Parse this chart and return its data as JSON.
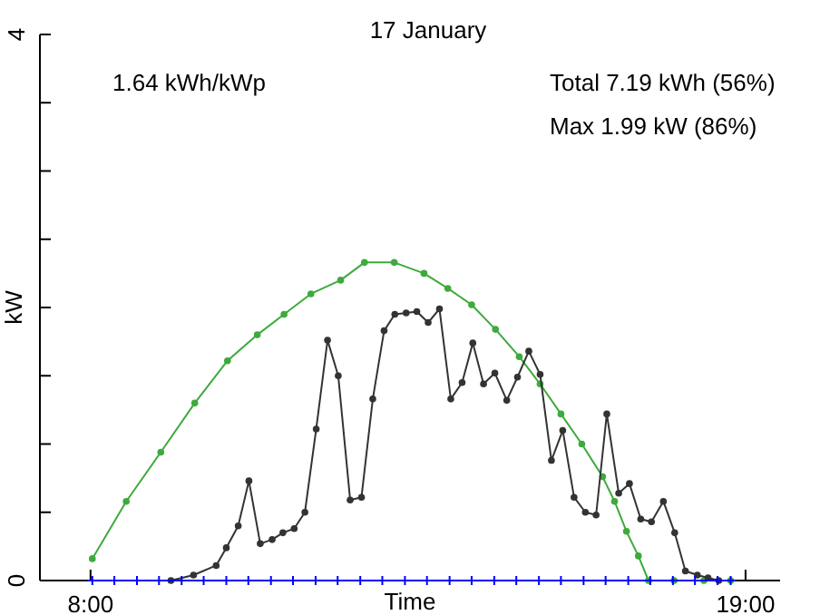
{
  "chart_data": {
    "type": "line",
    "title": "17 January",
    "xlabel": "Time",
    "ylabel": "kW",
    "annotations": [
      "1.64 kWh/kWp",
      "Total 7.19 kWh (56%)",
      "Max 1.99 kW (86%)"
    ],
    "xlim": [
      7.15,
      19.58
    ],
    "xticks": [
      {
        "value": 8,
        "label": "8:00"
      },
      {
        "value": 19,
        "label": "19:00"
      }
    ],
    "ylim": [
      0,
      4
    ],
    "yticks": [
      0,
      {
        "value": 0.5,
        "label": null
      },
      {
        "value": 1,
        "label": null
      },
      {
        "value": 1.5,
        "label": null
      },
      {
        "value": 2,
        "label": null
      },
      {
        "value": 2.5,
        "label": null
      },
      {
        "value": 3,
        "label": null
      },
      {
        "value": 3.5,
        "label": null
      },
      4
    ],
    "grid": false,
    "marker": "circle",
    "line_style": "solid",
    "series": [
      {
        "color": "#3daa3d",
        "x": [
          8.03,
          8.6,
          9.18,
          9.75,
          10.3,
          10.8,
          11.25,
          11.7,
          12.2,
          12.6,
          13.1,
          13.6,
          14.0,
          14.4,
          14.8,
          15.2,
          15.55,
          15.9,
          16.25,
          16.6,
          16.8,
          17.0,
          17.2,
          17.37,
          17.8,
          18.3,
          18.75
        ],
        "values": [
          0.16,
          0.58,
          0.94,
          1.3,
          1.61,
          1.8,
          1.95,
          2.1,
          2.2,
          2.33,
          2.33,
          2.25,
          2.14,
          2.02,
          1.84,
          1.64,
          1.44,
          1.22,
          1.0,
          0.76,
          0.58,
          0.36,
          0.18,
          0,
          0,
          0,
          0
        ]
      },
      {
        "color": "#333333",
        "x": [
          9.35,
          9.73,
          10.11,
          10.28,
          10.48,
          10.66,
          10.85,
          11.05,
          11.23,
          11.42,
          11.6,
          11.79,
          11.98,
          12.16,
          12.36,
          12.55,
          12.74,
          12.93,
          13.11,
          13.3,
          13.48,
          13.67,
          13.86,
          14.05,
          14.24,
          14.42,
          14.6,
          14.79,
          14.99,
          15.17,
          15.36,
          15.55,
          15.74,
          15.93,
          16.12,
          16.31,
          16.49,
          16.67,
          16.87,
          17.05,
          17.24,
          17.42,
          17.62,
          17.81,
          17.99,
          18.19,
          18.37,
          18.55
        ],
        "values": [
          0,
          0.04,
          0.11,
          0.24,
          0.4,
          0.73,
          0.27,
          0.3,
          0.35,
          0.38,
          0.5,
          1.11,
          1.76,
          1.5,
          0.59,
          0.61,
          1.33,
          1.83,
          1.95,
          1.96,
          1.97,
          1.89,
          1.99,
          1.33,
          1.45,
          1.74,
          1.44,
          1.52,
          1.32,
          1.49,
          1.68,
          1.51,
          0.88,
          1.1,
          0.61,
          0.5,
          0.48,
          1.22,
          0.64,
          0.71,
          0.45,
          0.43,
          0.58,
          0.35,
          0.07,
          0.04,
          0.02,
          0
        ]
      },
      {
        "color": "#0000ff",
        "marker": "cross",
        "x": [
          8.03,
          8.4,
          8.78,
          9.15,
          9.53,
          9.9,
          10.28,
          10.65,
          11.03,
          11.4,
          11.78,
          12.15,
          12.53,
          12.9,
          13.28,
          13.65,
          14.03,
          14.4,
          14.78,
          15.15,
          15.53,
          15.9,
          16.28,
          16.65,
          17.03,
          17.4,
          17.78,
          18.15,
          18.53,
          18.75
        ],
        "values": [
          0,
          0,
          0,
          0,
          0,
          0,
          0,
          0,
          0,
          0,
          0,
          0,
          0,
          0,
          0,
          0,
          0,
          0,
          0,
          0,
          0,
          0,
          0,
          0,
          0,
          0,
          0,
          0,
          0,
          0
        ]
      }
    ]
  }
}
